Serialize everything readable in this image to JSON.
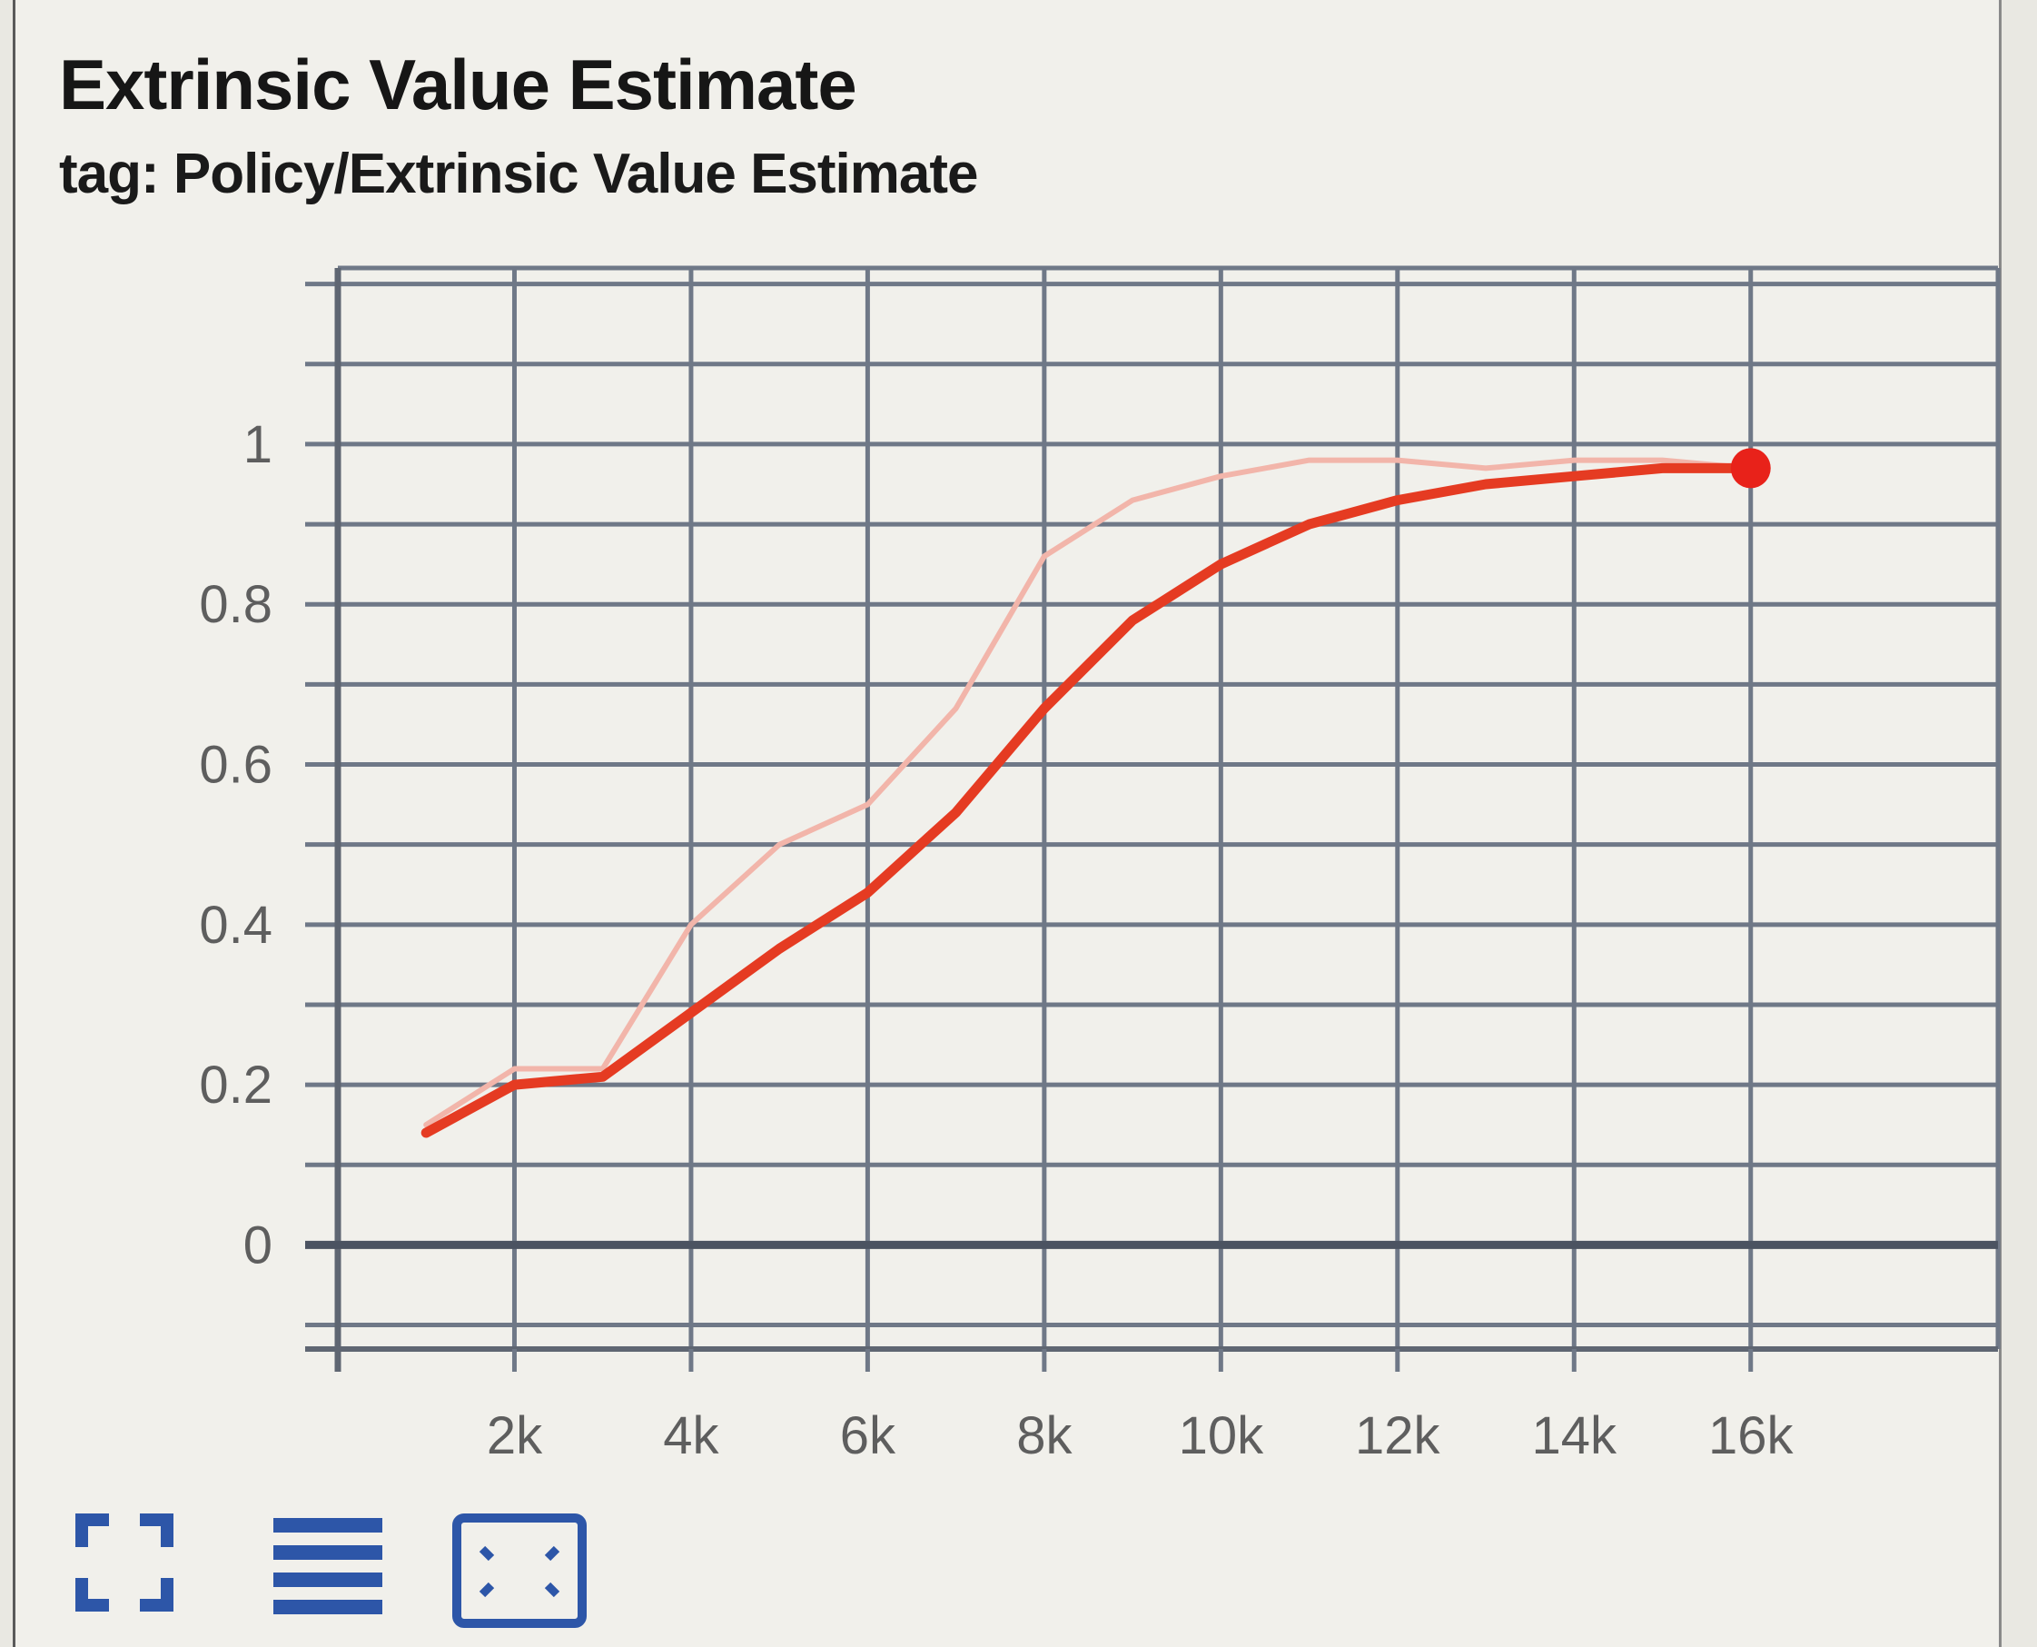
{
  "card": {
    "title": "Extrinsic Value Estimate",
    "subtitle": "tag: Policy/Extrinsic Value Estimate"
  },
  "chart_data": {
    "type": "line",
    "title": "Extrinsic Value Estimate",
    "subtitle": "tag: Policy/Extrinsic Value Estimate",
    "xlabel": "",
    "ylabel": "",
    "xlim": [
      0,
      18800
    ],
    "ylim": [
      -0.13,
      1.22
    ],
    "x_ticks": [
      2000,
      4000,
      6000,
      8000,
      10000,
      12000,
      14000,
      16000
    ],
    "x_tick_labels": [
      "2k",
      "4k",
      "6k",
      "8k",
      "10k",
      "12k",
      "14k",
      "16k"
    ],
    "y_ticks": [
      0,
      0.2,
      0.4,
      0.6,
      0.8,
      1
    ],
    "y_tick_labels": [
      "0",
      "0.2",
      "0.4",
      "0.6",
      "0.8",
      "1"
    ],
    "grid": true,
    "series": [
      {
        "role": "raw",
        "color": "#f2b5aa",
        "x": [
          1000,
          2000,
          3000,
          4000,
          5000,
          6000,
          7000,
          8000,
          9000,
          10000,
          11000,
          12000,
          13000,
          14000,
          15000,
          16000
        ],
        "y": [
          0.15,
          0.22,
          0.22,
          0.4,
          0.5,
          0.55,
          0.67,
          0.86,
          0.93,
          0.96,
          0.98,
          0.98,
          0.97,
          0.98,
          0.98,
          0.97
        ]
      },
      {
        "role": "smoothed",
        "color": "#e53b22",
        "x": [
          1000,
          2000,
          3000,
          4000,
          5000,
          6000,
          7000,
          8000,
          9000,
          10000,
          11000,
          12000,
          13000,
          14000,
          15000,
          16000
        ],
        "y": [
          0.14,
          0.2,
          0.21,
          0.29,
          0.37,
          0.44,
          0.54,
          0.67,
          0.78,
          0.85,
          0.9,
          0.93,
          0.95,
          0.96,
          0.97,
          0.97
        ]
      }
    ],
    "highlight_point": {
      "x": 16000,
      "y": 0.97,
      "color": "#e8221a"
    }
  },
  "toolbar": {
    "color": "#2d56a8",
    "buttons": [
      {
        "icon": "fullscreen-icon"
      },
      {
        "icon": "data-table-icon"
      },
      {
        "icon": "fit-domain-icon"
      }
    ]
  }
}
